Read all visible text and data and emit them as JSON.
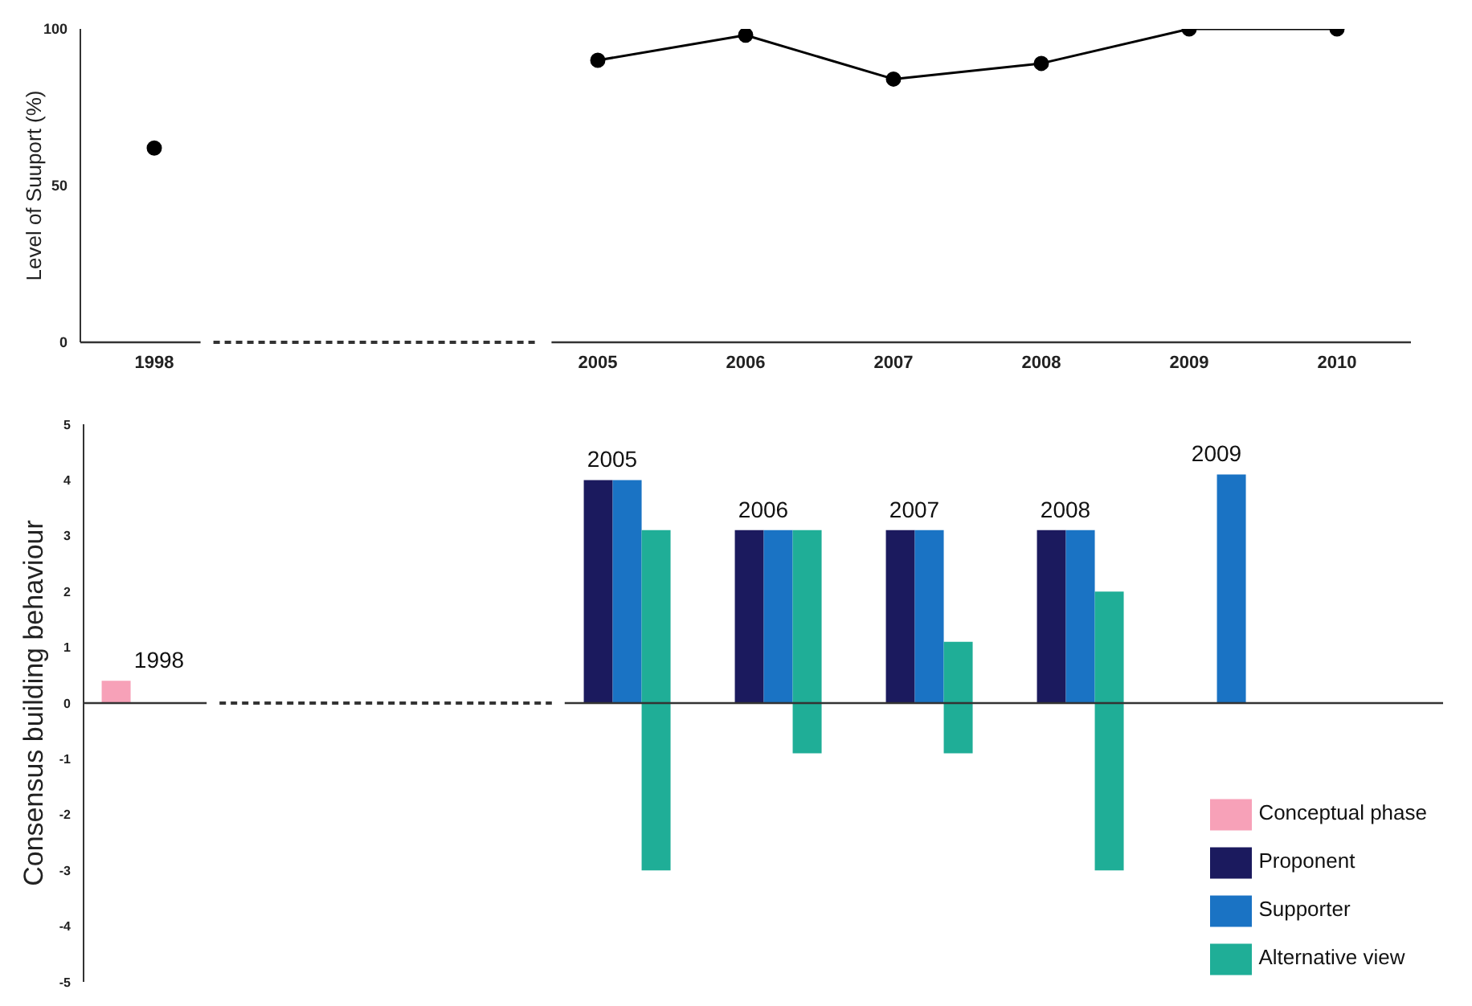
{
  "chart_data": [
    {
      "type": "line",
      "ylabel": "Level of Suuport (%)",
      "categories": [
        "1998",
        null,
        null,
        "2005",
        "2006",
        "2007",
        "2008",
        "2009",
        "2010"
      ],
      "values": [
        62,
        null,
        null,
        90,
        98,
        84,
        89,
        100,
        100
      ],
      "color": "#000000",
      "marker": "circle",
      "ylim": [
        0,
        100
      ],
      "yticks": [
        0,
        50,
        100
      ]
    },
    {
      "type": "bar",
      "ylabel": "Consensus building behaviour",
      "categories": [
        "1998",
        null,
        null,
        "2005",
        "2006",
        "2007",
        "2008",
        "2009",
        null
      ],
      "legend": "bottom right",
      "ylim": [
        -5,
        5
      ],
      "yticks": [
        -5,
        -4,
        -3,
        -2,
        -1,
        0,
        1,
        2,
        3,
        4,
        5
      ],
      "series": [
        {
          "name": "Conceptual phase",
          "color": "#f7a1b8",
          "values": [
            0.4,
            null,
            null,
            null,
            null,
            null,
            null,
            null,
            null
          ]
        },
        {
          "name": "Proponent",
          "color": "#1b1a5e",
          "values": [
            null,
            null,
            null,
            4,
            3.1,
            3.1,
            3.1,
            null,
            null
          ]
        },
        {
          "name": "Supporter",
          "color": "#1a73c4",
          "values": [
            null,
            null,
            null,
            4,
            3.1,
            3.1,
            3.1,
            4.1,
            null
          ]
        },
        {
          "name": "Alternative view",
          "color": "#1fae97",
          "base": [
            null,
            null,
            null,
            -3,
            -0.9,
            -0.9,
            -3,
            null,
            null
          ],
          "values": [
            null,
            null,
            null,
            6.1,
            4,
            2,
            5,
            null,
            null
          ]
        }
      ]
    }
  ]
}
